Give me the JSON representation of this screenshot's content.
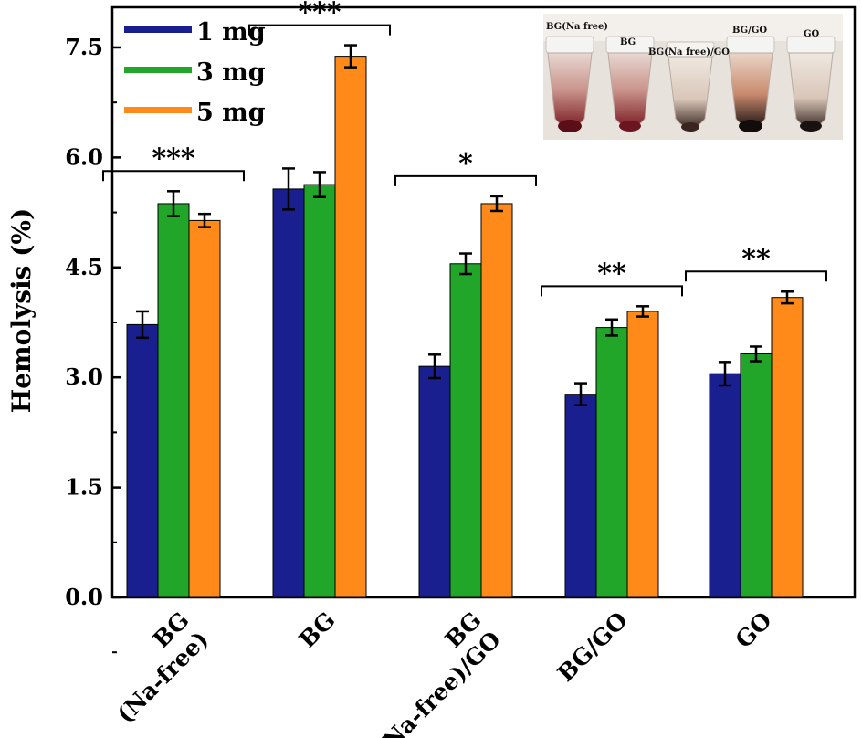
{
  "chart_data": {
    "type": "bar",
    "title": "",
    "xlabel": "",
    "ylabel": "Hemolysis (%)",
    "ylim": [
      0,
      7.8
    ],
    "yticks": [
      "0.0",
      "1.5",
      "3.0",
      "4.5",
      "6.0",
      "7.5"
    ],
    "ytick_values": [
      0,
      1.5,
      3.0,
      4.5,
      6.0,
      7.5
    ],
    "categories": [
      {
        "line1": "BG",
        "line2": "(Na-free)"
      },
      {
        "line1": "BG",
        "line2": ""
      },
      {
        "line1": "BG",
        "line2": "(Na-free)/GO"
      },
      {
        "line1": "BG/GO",
        "line2": ""
      },
      {
        "line1": "GO",
        "line2": ""
      }
    ],
    "series": [
      {
        "name": "1 mg",
        "color": "#1a1f8f",
        "values": [
          3.72,
          5.57,
          3.15,
          2.77,
          3.05
        ],
        "errors": [
          0.18,
          0.28,
          0.16,
          0.15,
          0.16
        ]
      },
      {
        "name": "3 mg",
        "color": "#22a62a",
        "values": [
          5.37,
          5.63,
          4.55,
          3.68,
          3.32
        ],
        "errors": [
          0.17,
          0.17,
          0.14,
          0.11,
          0.1
        ]
      },
      {
        "name": "5 mg",
        "color": "#ff8a1a",
        "values": [
          5.14,
          7.38,
          5.37,
          3.9,
          4.09
        ],
        "errors": [
          0.09,
          0.15,
          0.1,
          0.07,
          0.08
        ]
      }
    ],
    "significance": [
      "***",
      "***",
      "*",
      "**",
      "**"
    ],
    "legend_position": "top-left",
    "inset": {
      "description": "photo of hemolysis test tubes",
      "labels": [
        "BG(Na free)",
        "BG",
        "BG(Na free)/GO",
        "BG/GO",
        "GO"
      ]
    }
  }
}
